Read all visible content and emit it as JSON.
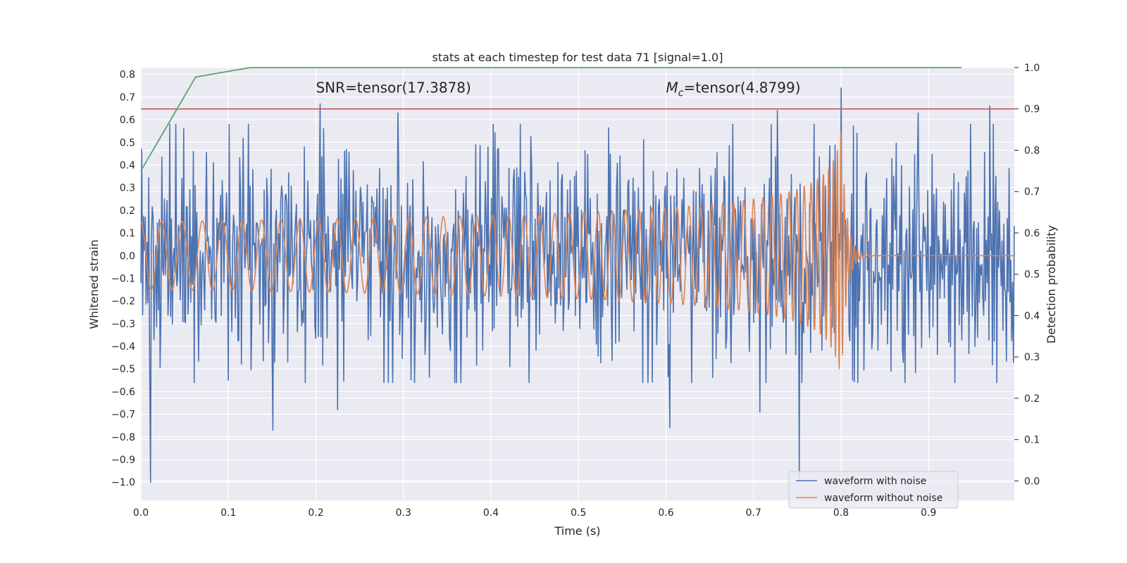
{
  "chart_data": {
    "type": "line",
    "title": "stats at each timestep for test data 71 [signal=1.0]",
    "xlabel": "Time (s)",
    "ylabel": "Whitened strain",
    "y2label": "Detection probability",
    "xlim": [
      0.0,
      0.998
    ],
    "ylim": [
      -1.08,
      0.83
    ],
    "y2lim": [
      -0.047,
      1.0
    ],
    "x_ticks": [
      "0.0",
      "0.1",
      "0.2",
      "0.3",
      "0.4",
      "0.5",
      "0.6",
      "0.7",
      "0.8",
      "0.9"
    ],
    "y_ticks": [
      "0.8",
      "0.7",
      "0.6",
      "0.5",
      "0.4",
      "0.3",
      "0.2",
      "0.1",
      "0.0",
      "−0.1",
      "−0.2",
      "−0.3",
      "−0.4",
      "−0.5",
      "−0.6",
      "−0.7",
      "−0.8",
      "−0.9",
      "−1.0"
    ],
    "y2_ticks": [
      "1.0",
      "0.9",
      "0.8",
      "0.7",
      "0.6",
      "0.5",
      "0.4",
      "0.3",
      "0.2",
      "0.1",
      "0.0"
    ],
    "annotations": [
      {
        "text": "SNR=tensor(17.3878)",
        "x": 0.2,
        "y": 0.72
      },
      {
        "prefix": "M",
        "sub": "c",
        "suffix": "=tensor(4.8799)",
        "x": 0.6,
        "y": 0.72
      }
    ],
    "legend_location": "lower right",
    "grid": true,
    "series": [
      {
        "name": "waveform with noise",
        "axis": "left",
        "color": "#4c72b0",
        "generated": "noise",
        "seed": 71,
        "n_points": 1000,
        "peaks": [
          [
            0.011,
            -1.0
          ],
          [
            0.151,
            -0.77
          ],
          [
            0.205,
            0.67
          ],
          [
            0.225,
            -0.68
          ],
          [
            0.294,
            0.63
          ],
          [
            0.604,
            -0.76
          ],
          [
            0.707,
            -0.69
          ],
          [
            0.727,
            0.64
          ],
          [
            0.752,
            -0.98
          ],
          [
            0.8,
            0.74
          ],
          [
            0.888,
            0.63
          ],
          [
            0.97,
            0.66
          ]
        ]
      },
      {
        "name": "waveform without noise",
        "axis": "left",
        "color": "#dd8452",
        "generated": "chirp",
        "merger_time": 0.8,
        "base_amplitude": 0.15,
        "peak_amplitude": 0.58,
        "start_frequency": 42,
        "end_frequency": 260
      },
      {
        "name": "",
        "axis": "right",
        "color": "#55a868",
        "x": [
          0.0,
          0.0625,
          0.125,
          0.1875,
          0.25,
          0.3125,
          0.375,
          0.4375,
          0.5,
          0.5625,
          0.625,
          0.6875,
          0.75,
          0.8125,
          0.875,
          0.9375
        ],
        "y": [
          0.75,
          0.977,
          1.0,
          1.0,
          1.0,
          1.0,
          1.0,
          1.0,
          1.0,
          1.0,
          1.0,
          1.0,
          1.0,
          1.0,
          1.0,
          1.0
        ]
      }
    ],
    "threshold": {
      "axis": "right",
      "y": 0.9,
      "color": "#c44e52"
    }
  }
}
